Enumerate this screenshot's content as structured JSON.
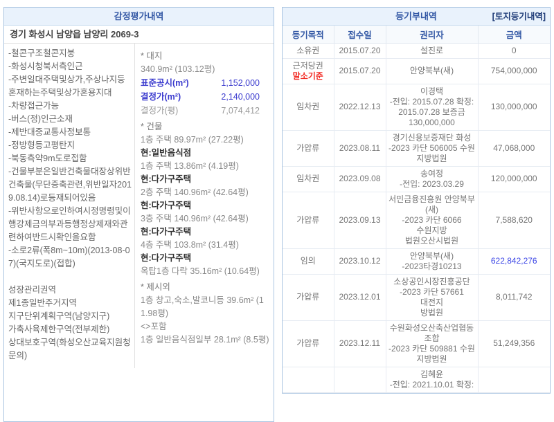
{
  "colors": {
    "header_bg": "#e9f2fc",
    "header_text": "#3358a5",
    "panel_border": "#a9c4e1",
    "red_accent": "#f22b24",
    "blue_amount": "#3c46e6",
    "blue_label": "#3a3ace"
  },
  "left_panel": {
    "title": "감정평가내역",
    "address": "경기 화성시 남양읍 남양리 2069-3",
    "remarks": [
      "-철콘구조철콘지붕",
      "-화성시청북서측인근",
      "-주변일대주택및상가,주상나지등혼재하는주택및상가혼용지대",
      "-차량접근가능",
      "-버스(정)인근소재",
      "-제반대중교통사정보통",
      "-정방형등고평탄지",
      "-북동측약9m도로접함",
      "-건물부분은일반건축물대장상위반건축물(무단증축관련,위반일자2019.08.14)로등재되어있음",
      "-위반사항으로인하여시정명령및이행강제금의부과등행정상제재와관련하여반드시확인을요함",
      "-소로2류(폭8m~10m)(2013-08-07)(국지도로)(접합)"
    ],
    "zones": [
      "성장관리권역",
      "제1종일반주거지역",
      "지구단위계획구역(남양지구)",
      "가축사육제한구역(전부제한)",
      "상대보호구역(화성오산교육지원청문의)"
    ],
    "valuation_items": [
      {
        "t": "heading",
        "text": "* 대지"
      },
      {
        "t": "text",
        "text": "340.9m² (103.12평)"
      },
      {
        "t": "kv",
        "style": "blue",
        "label": "표준공시(m²)",
        "value": "1,152,000"
      },
      {
        "t": "kv",
        "style": "blue",
        "label": "결정가(m²)",
        "value": "2,140,000"
      },
      {
        "t": "kv",
        "style": "gray",
        "label": "결정가(평)",
        "value": "7,074,412"
      },
      {
        "t": "heading",
        "text": "* 건물"
      },
      {
        "t": "text",
        "text": "1층 주택 89.97m² (27.22평)"
      },
      {
        "t": "bold",
        "text": "현:일반음식점"
      },
      {
        "t": "text",
        "text": "1층 주택 13.86m² (4.19평)"
      },
      {
        "t": "bold",
        "text": "현:다가구주택"
      },
      {
        "t": "text",
        "text": "2층 주택 140.96m² (42.64평)"
      },
      {
        "t": "bold",
        "text": "현:다가구주택"
      },
      {
        "t": "text",
        "text": "3층 주택 140.96m² (42.64평)"
      },
      {
        "t": "bold",
        "text": "현:다가구주택"
      },
      {
        "t": "text",
        "text": "4층 주택 103.8m² (31.4평)"
      },
      {
        "t": "bold",
        "text": "현:다가구주택"
      },
      {
        "t": "text",
        "text": "옥탑1층 다락 35.16m² (10.64평)"
      },
      {
        "t": "heading",
        "text": "* 제시외"
      },
      {
        "t": "text",
        "text": "1층 창고,숙소,발코니등 39.6m² (11.98평)"
      },
      {
        "t": "text",
        "text": "<>포함"
      },
      {
        "t": "text",
        "text": "1층 일반음식점일부 28.1m² (8.5평)"
      }
    ]
  },
  "right_panel": {
    "title": "등기부내역",
    "corner_label": "[토지등기내역]",
    "columns": [
      "등기목적",
      "접수일",
      "권리자",
      "금액"
    ],
    "rows": [
      {
        "purpose": "소유권",
        "purpose2": "",
        "date": "2015.07.20",
        "holder": [
          "설진로"
        ],
        "amount": "0",
        "style": "normal",
        "amount_style": "normal"
      },
      {
        "purpose": "근저당권",
        "purpose2": "말소기준",
        "date": "2015.07.20",
        "holder": [
          "안양북부(새)"
        ],
        "amount": "754,000,000",
        "style": "normal",
        "amount_style": "normal"
      },
      {
        "purpose": "임차권",
        "purpose2": "",
        "date": "2022.12.13",
        "holder": [
          "이경택",
          "-전입: 2015.07.28 확정:",
          "2015.07.28 보증금",
          "130,000,000"
        ],
        "amount": "130,000,000",
        "style": "normal",
        "amount_style": "normal"
      },
      {
        "purpose": "가압류",
        "purpose2": "",
        "date": "2023.08.11",
        "holder": [
          "경기신용보증재단 화성",
          "-2023 카단 506005 수원",
          "지방법원"
        ],
        "amount": "47,068,000",
        "style": "normal",
        "amount_style": "normal"
      },
      {
        "purpose": "임차권",
        "purpose2": "",
        "date": "2023.09.08",
        "holder": [
          "송여정",
          "-전입: 2023.03.29"
        ],
        "amount": "120,000,000",
        "style": "normal",
        "amount_style": "normal"
      },
      {
        "purpose": "가압류",
        "purpose2": "",
        "date": "2023.09.13",
        "holder": [
          "서민금융진흥원 안양북부",
          "(새)",
          "-2023 카단 6066 수원지방",
          "법원오산시법원"
        ],
        "amount": "7,588,620",
        "style": "normal",
        "amount_style": "normal"
      },
      {
        "purpose": "임의",
        "purpose2": "",
        "date": "2023.10.12",
        "holder": [
          "안양북부(새)",
          "-2023타경10213"
        ],
        "amount": "622,842,276",
        "style": "red",
        "amount_style": "blue"
      },
      {
        "purpose": "가압류",
        "purpose2": "",
        "date": "2023.12.01",
        "holder": [
          "소상공인시장진흥공단",
          "-2023 카단 57661 대전지",
          "방법원"
        ],
        "amount": "8,011,742",
        "style": "normal",
        "amount_style": "normal"
      },
      {
        "purpose": "가압류",
        "purpose2": "",
        "date": "2023.12.11",
        "holder": [
          "수원화성오산축산업협동",
          "조합",
          "-2023 카단 509881 수원",
          "지방법원"
        ],
        "amount": "51,249,356",
        "style": "normal",
        "amount_style": "normal"
      },
      {
        "purpose": "",
        "purpose2": "",
        "date": "",
        "holder": [
          "김혜윤",
          "-전입: 2021.10.01 확정:"
        ],
        "amount": "",
        "style": "normal",
        "amount_style": "normal"
      }
    ]
  }
}
